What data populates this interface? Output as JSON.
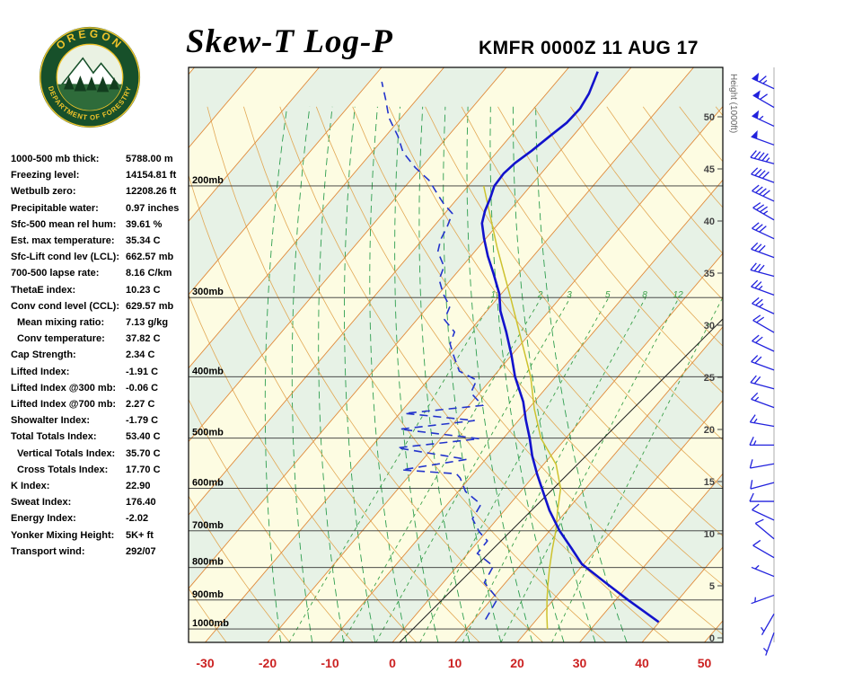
{
  "header": {
    "title": "Skew-T Log-P",
    "station_line": "KMFR 0000Z 11 AUG 17"
  },
  "logo": {
    "top_text": "OREGON",
    "bottom_text": "DEPARTMENT OF FORESTRY"
  },
  "indices": [
    {
      "label": "1000-500 mb thick:",
      "value": "5788.00 m",
      "indent": false
    },
    {
      "label": "Freezing level:",
      "value": "14154.81 ft",
      "indent": false
    },
    {
      "label": "Wetbulb zero:",
      "value": "12208.26 ft",
      "indent": false
    },
    {
      "label": "Precipitable water:",
      "value": "0.97 inches",
      "indent": false
    },
    {
      "label": "Sfc-500 mean rel hum:",
      "value": "39.61 %",
      "indent": false
    },
    {
      "label": "Est. max temperature:",
      "value": "35.34 C",
      "indent": false
    },
    {
      "label": "Sfc-Lift cond lev (LCL):",
      "value": "662.57 mb",
      "indent": false
    },
    {
      "label": "700-500 lapse rate:",
      "value": "8.16 C/km",
      "indent": false
    },
    {
      "label": "ThetaE index:",
      "value": "10.23 C",
      "indent": false
    },
    {
      "label": "Conv cond level (CCL):",
      "value": "629.57 mb",
      "indent": false
    },
    {
      "label": "Mean mixing ratio:",
      "value": "7.13 g/kg",
      "indent": true
    },
    {
      "label": "Conv temperature:",
      "value": "37.82 C",
      "indent": true
    },
    {
      "label": "Cap Strength:",
      "value": "2.34 C",
      "indent": false
    },
    {
      "label": "Lifted Index:",
      "value": "-1.91 C",
      "indent": false
    },
    {
      "label": "Lifted Index @300 mb:",
      "value": "-0.06 C",
      "indent": false
    },
    {
      "label": "Lifted Index @700 mb:",
      "value": "2.27 C",
      "indent": false
    },
    {
      "label": "Showalter Index:",
      "value": "-1.79 C",
      "indent": false
    },
    {
      "label": "Total Totals Index:",
      "value": "53.40 C",
      "indent": false
    },
    {
      "label": "Vertical Totals Index:",
      "value": "35.70 C",
      "indent": true
    },
    {
      "label": "Cross Totals Index:",
      "value": "17.70 C",
      "indent": true
    },
    {
      "label": "K Index:",
      "value": "22.90",
      "indent": false
    },
    {
      "label": "Sweat Index:",
      "value": "176.40",
      "indent": false
    },
    {
      "label": "Energy Index:",
      "value": "-2.02",
      "indent": false
    },
    {
      "label": "Yonker Mixing Height:",
      "value": "5K+ ft",
      "indent": false
    },
    {
      "label": "Transport wind:",
      "value": "292/07",
      "indent": false
    }
  ],
  "chart_data": {
    "type": "skew-t-log-p",
    "title": "Skew-T Log-P",
    "station": "KMFR",
    "valid_time": "0000Z 11 AUG 17",
    "x_axis": {
      "units": "C",
      "ticks": [
        -30,
        -20,
        -10,
        0,
        10,
        20,
        30,
        40,
        50
      ]
    },
    "pressure_lines_mb": [
      200,
      300,
      400,
      500,
      600,
      700,
      800,
      900,
      1000
    ],
    "pressure_label_suffix": "mb",
    "height_axis": {
      "label": "Height (1000ft)",
      "ticks": [
        0,
        5,
        10,
        15,
        20,
        25,
        30,
        35,
        40,
        45,
        50
      ]
    },
    "mixing_ratio_lines_gkg": [
      1,
      2,
      3,
      5,
      8,
      12,
      20
    ],
    "series": [
      {
        "name": "temperature",
        "units": [
          "mb",
          "C"
        ],
        "points": [
          [
            975,
            39.9
          ],
          [
            900,
            32
          ],
          [
            845,
            26
          ],
          [
            790,
            19.7
          ],
          [
            745,
            15.8
          ],
          [
            700,
            11.6
          ],
          [
            650,
            7.2
          ],
          [
            607,
            3.6
          ],
          [
            570,
            0.3
          ],
          [
            533,
            -3
          ],
          [
            500,
            -5.8
          ],
          [
            468,
            -8.9
          ],
          [
            438,
            -11.8
          ],
          [
            400,
            -16.5
          ],
          [
            370,
            -20
          ],
          [
            340,
            -24
          ],
          [
            315,
            -27.8
          ],
          [
            296,
            -30.3
          ],
          [
            275,
            -34
          ],
          [
            258,
            -37.3
          ],
          [
            242,
            -40.3
          ],
          [
            229,
            -42.7
          ],
          [
            219,
            -43.9
          ],
          [
            209,
            -44.8
          ],
          [
            200,
            -45.8
          ],
          [
            191,
            -46
          ],
          [
            184,
            -45.6
          ],
          [
            176,
            -44.6
          ],
          [
            167,
            -43.7
          ],
          [
            159,
            -42.8
          ],
          [
            151,
            -42.6
          ],
          [
            143,
            -43.2
          ],
          [
            136,
            -44.2
          ],
          [
            132,
            -44.8
          ]
        ]
      },
      {
        "name": "dewpoint",
        "units": [
          "mb",
          "C"
        ],
        "points": [
          [
            966,
            11.8
          ],
          [
            896,
            10.9
          ],
          [
            845,
            6.6
          ],
          [
            796,
            5.8
          ],
          [
            760,
            1.5
          ],
          [
            726,
            1.4
          ],
          [
            703,
            -1.1
          ],
          [
            670,
            -4
          ],
          [
            636,
            -4.6
          ],
          [
            607,
            -8.8
          ],
          [
            578,
            -11.5
          ],
          [
            569,
            -12.7
          ],
          [
            561,
            -22
          ],
          [
            540,
            -13
          ],
          [
            518,
            -25.7
          ],
          [
            501,
            -13.8
          ],
          [
            484,
            -27.8
          ],
          [
            469,
            -17
          ],
          [
            457,
            -29.2
          ],
          [
            444,
            -17.8
          ],
          [
            424,
            -21.4
          ],
          [
            405,
            -22.2
          ],
          [
            392,
            -26.2
          ],
          [
            372,
            -29
          ],
          [
            355,
            -31.4
          ],
          [
            340,
            -32.3
          ],
          [
            325,
            -35.6
          ],
          [
            310,
            -36.5
          ],
          [
            296,
            -39.3
          ],
          [
            281,
            -41.9
          ],
          [
            268,
            -42.9
          ],
          [
            254,
            -45.9
          ],
          [
            243,
            -47.1
          ],
          [
            232,
            -47.8
          ],
          [
            221,
            -48.8
          ],
          [
            213,
            -51.6
          ],
          [
            206,
            -53.8
          ],
          [
            196,
            -57
          ],
          [
            187,
            -61
          ],
          [
            177,
            -65
          ],
          [
            167,
            -68
          ],
          [
            156,
            -72
          ],
          [
            146,
            -75
          ],
          [
            137,
            -78
          ]
        ]
      },
      {
        "name": "parcel_wetbulb",
        "units": [
          "mb",
          "C"
        ],
        "points": [
          [
            1000,
            23
          ],
          [
            950,
            21
          ],
          [
            900,
            19
          ],
          [
            850,
            17
          ],
          [
            800,
            15
          ],
          [
            750,
            13
          ],
          [
            700,
            11
          ],
          [
            650,
            8.5
          ],
          [
            600,
            6
          ],
          [
            550,
            2
          ],
          [
            500,
            -4
          ],
          [
            450,
            -9
          ],
          [
            400,
            -14
          ],
          [
            350,
            -20.5
          ],
          [
            300,
            -28
          ],
          [
            250,
            -37
          ],
          [
            200,
            -47.5
          ]
        ]
      }
    ],
    "wind_barbs": {
      "units": [
        "kft",
        "deg",
        "kt"
      ],
      "points": [
        [
          0.5,
          200,
          5
        ],
        [
          2.3,
          210,
          5
        ],
        [
          4.1,
          250,
          7
        ],
        [
          5.9,
          292,
          7
        ],
        [
          7.7,
          300,
          10
        ],
        [
          9.5,
          310,
          10
        ],
        [
          11.3,
          295,
          8
        ],
        [
          13.1,
          270,
          10
        ],
        [
          14.9,
          255,
          10
        ],
        [
          16.7,
          260,
          12
        ],
        [
          18.5,
          270,
          15
        ],
        [
          20.3,
          280,
          15
        ],
        [
          22.1,
          290,
          15
        ],
        [
          23.9,
          285,
          18
        ],
        [
          25.7,
          290,
          20
        ],
        [
          27.5,
          295,
          20
        ],
        [
          29.3,
          300,
          22
        ],
        [
          31.1,
          295,
          25
        ],
        [
          32.9,
          290,
          25
        ],
        [
          34.7,
          285,
          28
        ],
        [
          36.5,
          290,
          30
        ],
        [
          38.3,
          295,
          32
        ],
        [
          40.1,
          300,
          35
        ],
        [
          41.9,
          295,
          38
        ],
        [
          43.7,
          290,
          40
        ],
        [
          45.5,
          285,
          45
        ],
        [
          47.3,
          290,
          50
        ],
        [
          49.1,
          295,
          55
        ],
        [
          50.9,
          300,
          60
        ],
        [
          52.7,
          295,
          65
        ]
      ]
    },
    "colors": {
      "temperature": "#1212cc",
      "dewpoint": "#2233cc",
      "parcel": "#cdc22e",
      "isotherm": "#e08a3a",
      "dry_adiabat": "#e2a855",
      "moist_adiabat": "#2e9e4f",
      "mixing_ratio": "#3aa048",
      "pressure_line": "#333333",
      "temp_axis_label": "#cc2222",
      "wind_barb": "#2222dd",
      "band_a": "#fdfce2",
      "band_b": "#e7f2e6"
    }
  }
}
